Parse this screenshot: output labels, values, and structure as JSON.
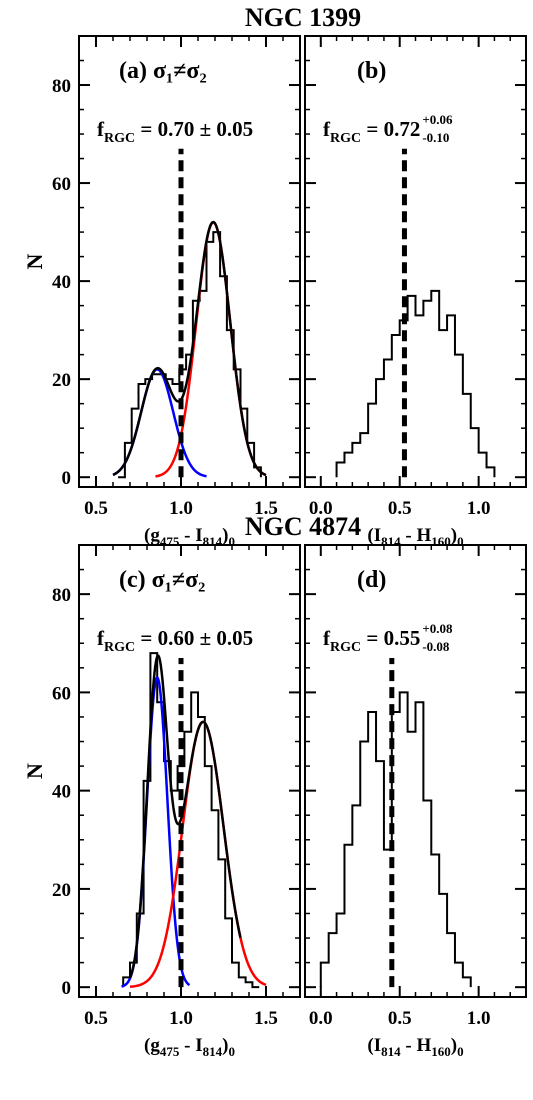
{
  "chart_data": [
    {
      "type": "histogram",
      "galaxy": "NGC 1399",
      "panel_label": "(a)",
      "annotation": "σ₁≠σ₂",
      "fraction_label": "f",
      "fraction_subscript": "RGC",
      "fraction_value": "0.70 ± 0.05",
      "ylabel": "N",
      "xlabel": {
        "main": "(g",
        "sub1": "475",
        "mid": " - I",
        "sub2": "814",
        "close": ")",
        "sub3": "0"
      },
      "xlim": [
        0.4,
        1.7
      ],
      "ylim": [
        -2,
        90
      ],
      "xticks": [
        0.5,
        1.0,
        1.5
      ],
      "xtick_labels": [
        "0.5",
        "1.0",
        "1.5"
      ],
      "yticks": [
        0,
        20,
        40,
        60,
        80
      ],
      "ytick_labels": [
        "0",
        "20",
        "40",
        "60",
        "80"
      ],
      "divider_x": 1.0,
      "histogram": {
        "edges": [
          0.63,
          0.67,
          0.71,
          0.75,
          0.79,
          0.83,
          0.87,
          0.91,
          0.95,
          0.99,
          1.03,
          1.07,
          1.11,
          1.15,
          1.19,
          1.23,
          1.27,
          1.31,
          1.35,
          1.39,
          1.43,
          1.47
        ],
        "counts": [
          0,
          7,
          14,
          19,
          20,
          21,
          21,
          20,
          19,
          22,
          25,
          36,
          38,
          48,
          50,
          41,
          30,
          22,
          14,
          7,
          2
        ]
      },
      "fits": [
        {
          "color": "#0000ff",
          "mean": 0.86,
          "sigma": 0.094,
          "amplitude": 22,
          "x_range": [
            0.6,
            1.15
          ]
        },
        {
          "color": "#ff0000",
          "mean": 1.19,
          "sigma": 0.1,
          "amplitude": 52,
          "x_range": [
            0.85,
            1.5
          ]
        },
        {
          "color": "#000000",
          "sum": true,
          "x_range": [
            0.6,
            1.5
          ]
        }
      ]
    },
    {
      "type": "histogram",
      "panel_label": "(b)",
      "fraction_label": "f",
      "fraction_subscript": "RGC",
      "fraction_value": "0.72",
      "fraction_sup": "+0.06",
      "fraction_sub": "-0.10",
      "xlabel": {
        "main": "(I",
        "sub1": "814",
        "mid": " - H",
        "sub2": "160",
        "close": ")",
        "sub3": "0"
      },
      "xlim": [
        -0.1,
        1.3
      ],
      "ylim": [
        -2,
        90
      ],
      "xticks": [
        0.0,
        0.5,
        1.0
      ],
      "xtick_labels": [
        "0.0",
        "0.5",
        "1.0"
      ],
      "yticks": [
        0,
        20,
        40,
        60,
        80
      ],
      "divider_x": 0.53,
      "histogram": {
        "edges": [
          0.1,
          0.15,
          0.2,
          0.25,
          0.3,
          0.35,
          0.4,
          0.45,
          0.5,
          0.55,
          0.6,
          0.65,
          0.7,
          0.75,
          0.8,
          0.85,
          0.9,
          0.95,
          1.0,
          1.05,
          1.1
        ],
        "counts": [
          3,
          5,
          7,
          9,
          15,
          20,
          24,
          29,
          32,
          37,
          33,
          36,
          38,
          30,
          33,
          25,
          17,
          10,
          5,
          2
        ]
      }
    },
    {
      "type": "histogram",
      "galaxy": "NGC 4874",
      "panel_label": "(c)",
      "annotation": "σ₁≠σ₂",
      "fraction_label": "f",
      "fraction_subscript": "RGC",
      "fraction_value": "0.60 ± 0.05",
      "ylabel": "N",
      "xlabel": {
        "main": "(g",
        "sub1": "475",
        "mid": " - I",
        "sub2": "814",
        "close": ")",
        "sub3": "0"
      },
      "xlim": [
        0.4,
        1.7
      ],
      "ylim": [
        -2,
        90
      ],
      "xticks": [
        0.5,
        1.0,
        1.5
      ],
      "xtick_labels": [
        "0.5",
        "1.0",
        "1.5"
      ],
      "yticks": [
        0,
        20,
        40,
        60,
        80
      ],
      "ytick_labels": [
        "0",
        "20",
        "40",
        "60",
        "80"
      ],
      "divider_x": 1.0,
      "histogram": {
        "edges": [
          0.66,
          0.7,
          0.74,
          0.78,
          0.82,
          0.86,
          0.9,
          0.94,
          0.98,
          1.02,
          1.06,
          1.1,
          1.14,
          1.18,
          1.22,
          1.26,
          1.3,
          1.34,
          1.38,
          1.42,
          1.46
        ],
        "counts": [
          2,
          5,
          15,
          42,
          68,
          58,
          46,
          40,
          45,
          52,
          60,
          55,
          45,
          36,
          26,
          14,
          5,
          2,
          1,
          0
        ]
      },
      "fits": [
        {
          "color": "#0000ff",
          "mean": 0.86,
          "sigma": 0.06,
          "amplitude": 63,
          "x_range": [
            0.65,
            1.05
          ]
        },
        {
          "color": "#ff0000",
          "mean": 1.13,
          "sigma": 0.12,
          "amplitude": 54,
          "x_range": [
            0.7,
            1.5
          ]
        },
        {
          "color": "#000000",
          "sum": true,
          "x_range": [
            0.7,
            1.35
          ]
        }
      ]
    },
    {
      "type": "histogram",
      "panel_label": "(d)",
      "fraction_label": "f",
      "fraction_subscript": "RGC",
      "fraction_value": "0.55",
      "fraction_sup": "+0.08",
      "fraction_sub": "-0.08",
      "xlabel": {
        "main": "(I",
        "sub1": "814",
        "mid": " - H",
        "sub2": "160",
        "close": ")",
        "sub3": "0"
      },
      "xlim": [
        -0.1,
        1.3
      ],
      "ylim": [
        -2,
        90
      ],
      "xticks": [
        0.0,
        0.5,
        1.0
      ],
      "xtick_labels": [
        "0.0",
        "0.5",
        "1.0"
      ],
      "yticks": [
        0,
        20,
        40,
        60,
        80
      ],
      "divider_x": 0.45,
      "histogram": {
        "edges": [
          0.0,
          0.05,
          0.1,
          0.15,
          0.2,
          0.25,
          0.3,
          0.35,
          0.4,
          0.45,
          0.5,
          0.55,
          0.6,
          0.65,
          0.7,
          0.75,
          0.8,
          0.85,
          0.9,
          0.95
        ],
        "counts": [
          5,
          11,
          15,
          29,
          37,
          50,
          56,
          46,
          28,
          56,
          60,
          52,
          58,
          38,
          27,
          19,
          11,
          5,
          2
        ]
      }
    }
  ]
}
